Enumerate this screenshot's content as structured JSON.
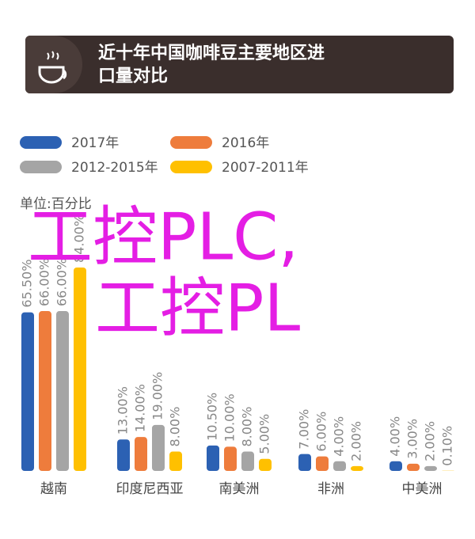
{
  "chart_data": {
    "type": "bar",
    "title": "近十年中国咖啡豆主要地区进口量对比",
    "unit_label": "单位:百分比",
    "categories": [
      "越南",
      "印度尼西亚",
      "南美洲",
      "非洲",
      "中美洲"
    ],
    "series": [
      {
        "name": "2017年",
        "color": "#2c61b3",
        "values": [
          65.5,
          13,
          10.5,
          7,
          4
        ],
        "value_labels": [
          "65.50%",
          "13.00%",
          "10.50%",
          "7.00%",
          "4.00%"
        ]
      },
      {
        "name": "2016年",
        "color": "#ee7c3c",
        "values": [
          66,
          14,
          10,
          6,
          3
        ],
        "value_labels": [
          "66.00%",
          "14.00%",
          "10.00%",
          "6.00%",
          "3.00%"
        ]
      },
      {
        "name": "2012-2015年",
        "color": "#a5a5a5",
        "values": [
          66,
          19,
          8,
          4,
          2
        ],
        "value_labels": [
          "66.00%",
          "19.00%",
          "8.00%",
          "4.00%",
          "2.00%"
        ]
      },
      {
        "name": "2007-2011年",
        "color": "#ffc000",
        "values": [
          84,
          8,
          5,
          2,
          0.1
        ],
        "value_labels": [
          "84.00%",
          "8.00%",
          "5.00%",
          "2.00%",
          "0.10%"
        ]
      }
    ]
  },
  "overlay_text": [
    "工控PLC,",
    "工控PL"
  ]
}
